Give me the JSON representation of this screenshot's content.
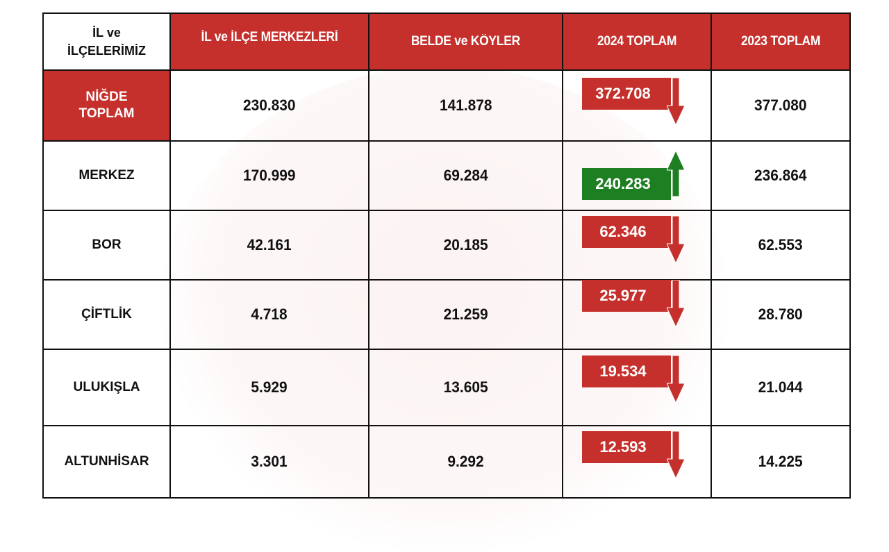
{
  "table": {
    "headers": {
      "region": [
        "İL ve",
        "İLÇELERİMİZ"
      ],
      "centers": "İL ve İLÇE MERKEZLERİ",
      "villages": "BELDE ve KÖYLER",
      "total_2024": "2024 TOPLAM",
      "total_2023": "2023 TOPLAM"
    },
    "rows": [
      {
        "name": [
          "NİĞDE",
          "TOPLAM"
        ],
        "centers": "230.830",
        "villages": "141.878",
        "total_2024": "372.708",
        "trend": "down",
        "total_2023": "377.080"
      },
      {
        "name": [
          "MERKEZ"
        ],
        "centers": "170.999",
        "villages": "69.284",
        "total_2024": "240.283",
        "trend": "up",
        "total_2023": "236.864"
      },
      {
        "name": [
          "BOR"
        ],
        "centers": "42.161",
        "villages": "20.185",
        "total_2024": "62.346",
        "trend": "down",
        "total_2023": "62.553"
      },
      {
        "name": [
          "ÇİFTLİK"
        ],
        "centers": "4.718",
        "villages": "21.259",
        "total_2024": "25.977",
        "trend": "down",
        "total_2023": "28.780"
      },
      {
        "name": [
          "ULUKIŞLA"
        ],
        "centers": "5.929",
        "villages": "13.605",
        "total_2024": "19.534",
        "trend": "down",
        "total_2023": "21.044"
      },
      {
        "name": [
          "ALTUNHİSAR"
        ],
        "centers": "3.301",
        "villages": "9.292",
        "total_2024": "12.593",
        "trend": "down",
        "total_2023": "14.225"
      }
    ]
  },
  "colors": {
    "header_red": "#c5302c",
    "decrease_red": "#c5302c",
    "increase_green": "#1e7e22"
  },
  "icons": {
    "decrease": "arrow-down-icon",
    "increase": "arrow-up-icon"
  }
}
